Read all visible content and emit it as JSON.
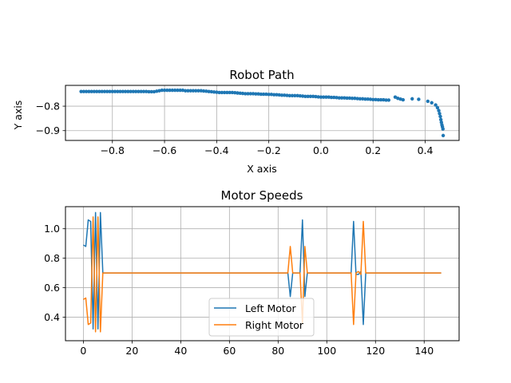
{
  "chart_data": [
    {
      "type": "scatter",
      "title": "Robot Path",
      "xlabel": "X axis",
      "ylabel": "Y axis",
      "xlim": [
        -0.98,
        0.53
      ],
      "ylim": [
        -0.94,
        -0.715
      ],
      "xticks": [
        -0.8,
        -0.6,
        -0.4,
        -0.2,
        0.0,
        0.2,
        0.4
      ],
      "xtick_labels": [
        "−0.8",
        "−0.6",
        "−0.4",
        "−0.2",
        "0.0",
        "0.2",
        "0.4"
      ],
      "yticks": [
        -0.8,
        -0.9
      ],
      "ytick_labels": [
        "−0.8",
        "−0.9"
      ],
      "grid": true,
      "color": "#1f77b4",
      "points": [
        [
          -0.92,
          -0.74
        ],
        [
          -0.91,
          -0.74
        ],
        [
          -0.9,
          -0.74
        ],
        [
          -0.89,
          -0.74
        ],
        [
          -0.88,
          -0.74
        ],
        [
          -0.87,
          -0.74
        ],
        [
          -0.86,
          -0.74
        ],
        [
          -0.85,
          -0.74
        ],
        [
          -0.84,
          -0.74
        ],
        [
          -0.83,
          -0.74
        ],
        [
          -0.82,
          -0.74
        ],
        [
          -0.81,
          -0.74
        ],
        [
          -0.8,
          -0.74
        ],
        [
          -0.79,
          -0.74
        ],
        [
          -0.78,
          -0.74
        ],
        [
          -0.77,
          -0.74
        ],
        [
          -0.76,
          -0.74
        ],
        [
          -0.75,
          -0.74
        ],
        [
          -0.74,
          -0.74
        ],
        [
          -0.73,
          -0.74
        ],
        [
          -0.72,
          -0.74
        ],
        [
          -0.71,
          -0.74
        ],
        [
          -0.7,
          -0.74
        ],
        [
          -0.69,
          -0.74
        ],
        [
          -0.68,
          -0.74
        ],
        [
          -0.67,
          -0.74
        ],
        [
          -0.66,
          -0.741
        ],
        [
          -0.65,
          -0.741
        ],
        [
          -0.64,
          -0.741
        ],
        [
          -0.63,
          -0.739
        ],
        [
          -0.62,
          -0.737
        ],
        [
          -0.61,
          -0.735
        ],
        [
          -0.6,
          -0.735
        ],
        [
          -0.59,
          -0.735
        ],
        [
          -0.58,
          -0.735
        ],
        [
          -0.57,
          -0.735
        ],
        [
          -0.56,
          -0.735
        ],
        [
          -0.55,
          -0.735
        ],
        [
          -0.54,
          -0.735
        ],
        [
          -0.53,
          -0.735
        ],
        [
          -0.52,
          -0.737
        ],
        [
          -0.51,
          -0.737
        ],
        [
          -0.5,
          -0.737
        ],
        [
          -0.49,
          -0.737
        ],
        [
          -0.48,
          -0.737
        ],
        [
          -0.47,
          -0.737
        ],
        [
          -0.46,
          -0.737
        ],
        [
          -0.45,
          -0.738
        ],
        [
          -0.44,
          -0.739
        ],
        [
          -0.43,
          -0.74
        ],
        [
          -0.42,
          -0.741
        ],
        [
          -0.41,
          -0.742
        ],
        [
          -0.4,
          -0.743
        ],
        [
          -0.39,
          -0.744
        ],
        [
          -0.38,
          -0.744
        ],
        [
          -0.37,
          -0.744
        ],
        [
          -0.36,
          -0.744
        ],
        [
          -0.35,
          -0.744
        ],
        [
          -0.34,
          -0.744
        ],
        [
          -0.33,
          -0.745
        ],
        [
          -0.32,
          -0.746
        ],
        [
          -0.31,
          -0.747
        ],
        [
          -0.3,
          -0.748
        ],
        [
          -0.29,
          -0.749
        ],
        [
          -0.28,
          -0.749
        ],
        [
          -0.27,
          -0.749
        ],
        [
          -0.26,
          -0.749
        ],
        [
          -0.25,
          -0.75
        ],
        [
          -0.24,
          -0.75
        ],
        [
          -0.23,
          -0.751
        ],
        [
          -0.22,
          -0.751
        ],
        [
          -0.21,
          -0.751
        ],
        [
          -0.2,
          -0.752
        ],
        [
          -0.19,
          -0.752
        ],
        [
          -0.18,
          -0.753
        ],
        [
          -0.17,
          -0.753
        ],
        [
          -0.16,
          -0.754
        ],
        [
          -0.15,
          -0.755
        ],
        [
          -0.14,
          -0.755
        ],
        [
          -0.13,
          -0.756
        ],
        [
          -0.12,
          -0.757
        ],
        [
          -0.11,
          -0.757
        ],
        [
          -0.1,
          -0.757
        ],
        [
          -0.09,
          -0.757
        ],
        [
          -0.08,
          -0.758
        ],
        [
          -0.07,
          -0.759
        ],
        [
          -0.06,
          -0.76
        ],
        [
          -0.05,
          -0.76
        ],
        [
          -0.04,
          -0.76
        ],
        [
          -0.03,
          -0.76
        ],
        [
          -0.02,
          -0.761
        ],
        [
          -0.01,
          -0.762
        ],
        [
          0.0,
          -0.763
        ],
        [
          0.01,
          -0.763
        ],
        [
          0.02,
          -0.763
        ],
        [
          0.03,
          -0.763
        ],
        [
          0.04,
          -0.764
        ],
        [
          0.05,
          -0.764
        ],
        [
          0.06,
          -0.765
        ],
        [
          0.07,
          -0.766
        ],
        [
          0.08,
          -0.766
        ],
        [
          0.09,
          -0.766
        ],
        [
          0.1,
          -0.767
        ],
        [
          0.11,
          -0.767
        ],
        [
          0.12,
          -0.768
        ],
        [
          0.13,
          -0.768
        ],
        [
          0.14,
          -0.769
        ],
        [
          0.15,
          -0.77
        ],
        [
          0.16,
          -0.77
        ],
        [
          0.17,
          -0.771
        ],
        [
          0.18,
          -0.771
        ],
        [
          0.19,
          -0.772
        ],
        [
          0.2,
          -0.773
        ],
        [
          0.21,
          -0.773
        ],
        [
          0.22,
          -0.774
        ],
        [
          0.23,
          -0.774
        ],
        [
          0.24,
          -0.774
        ],
        [
          0.25,
          -0.775
        ],
        [
          0.26,
          -0.775
        ],
        [
          0.285,
          -0.763
        ],
        [
          0.295,
          -0.768
        ],
        [
          0.305,
          -0.771
        ],
        [
          0.315,
          -0.774
        ],
        [
          0.35,
          -0.77
        ],
        [
          0.375,
          -0.772
        ],
        [
          0.41,
          -0.78
        ],
        [
          0.425,
          -0.786
        ],
        [
          0.44,
          -0.795
        ],
        [
          0.447,
          -0.806
        ],
        [
          0.452,
          -0.818
        ],
        [
          0.455,
          -0.83
        ],
        [
          0.458,
          -0.842
        ],
        [
          0.46,
          -0.855
        ],
        [
          0.462,
          -0.866
        ],
        [
          0.464,
          -0.876
        ],
        [
          0.466,
          -0.884
        ],
        [
          0.468,
          -0.893
        ],
        [
          0.469,
          -0.92
        ]
      ]
    },
    {
      "type": "line",
      "title": "Motor Speeds",
      "xlim": [
        -7.35,
        154.35
      ],
      "ylim": [
        0.24,
        1.15
      ],
      "xticks": [
        0,
        20,
        40,
        60,
        80,
        100,
        120,
        140
      ],
      "xtick_labels": [
        "0",
        "20",
        "40",
        "60",
        "80",
        "100",
        "120",
        "140"
      ],
      "yticks": [
        0.4,
        0.6,
        0.8,
        1.0
      ],
      "ytick_labels": [
        "0.4",
        "0.6",
        "0.8",
        "1.0"
      ],
      "grid": true,
      "legend_position": "lower-center",
      "series": [
        {
          "name": "Left Motor",
          "color": "#1f77b4",
          "points": [
            [
              0,
              0.89
            ],
            [
              1,
              0.88
            ],
            [
              2,
              1.06
            ],
            [
              3,
              1.05
            ],
            [
              4,
              0.32
            ],
            [
              5,
              1.11
            ],
            [
              6,
              0.32
            ],
            [
              7,
              1.11
            ],
            [
              8,
              0.7
            ],
            [
              84,
              0.7
            ],
            [
              85,
              0.54
            ],
            [
              86,
              0.7
            ],
            [
              89,
              0.7
            ],
            [
              90,
              1.06
            ],
            [
              91,
              0.54
            ],
            [
              92,
              0.7
            ],
            [
              110,
              0.7
            ],
            [
              111,
              1.05
            ],
            [
              112,
              0.69
            ],
            [
              113,
              0.69
            ],
            [
              114,
              0.71
            ],
            [
              115,
              0.35
            ],
            [
              116,
              0.7
            ],
            [
              147,
              0.7
            ]
          ]
        },
        {
          "name": "Right Motor",
          "color": "#ff7f0e",
          "points": [
            [
              0,
              0.52
            ],
            [
              1,
              0.53
            ],
            [
              2,
              0.35
            ],
            [
              3,
              0.36
            ],
            [
              4,
              1.08
            ],
            [
              5,
              0.3
            ],
            [
              6,
              1.08
            ],
            [
              7,
              0.3
            ],
            [
              8,
              0.7
            ],
            [
              84,
              0.7
            ],
            [
              85,
              0.88
            ],
            [
              86,
              0.7
            ],
            [
              89,
              0.7
            ],
            [
              90,
              0.36
            ],
            [
              91,
              0.88
            ],
            [
              92,
              0.7
            ],
            [
              110,
              0.7
            ],
            [
              111,
              0.35
            ],
            [
              112,
              0.7
            ],
            [
              113,
              0.71
            ],
            [
              114,
              0.69
            ],
            [
              115,
              1.05
            ],
            [
              116,
              0.7
            ],
            [
              147,
              0.7
            ]
          ]
        }
      ]
    }
  ]
}
